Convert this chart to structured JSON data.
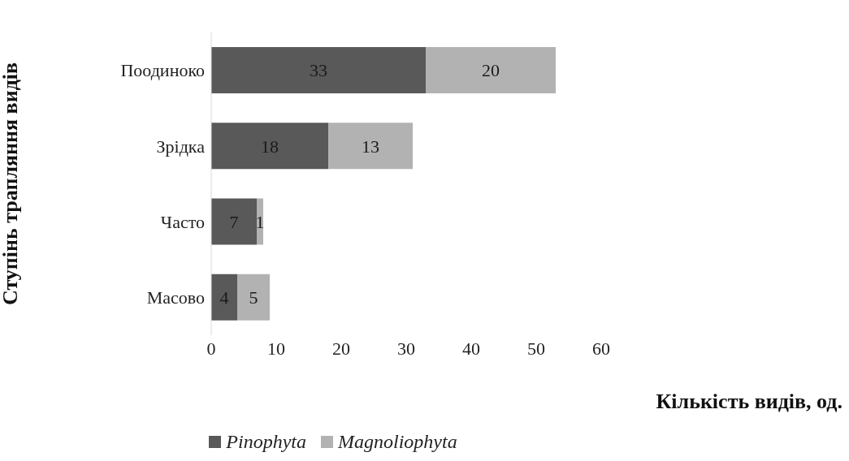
{
  "chart_data": {
    "type": "bar",
    "orientation": "horizontal",
    "stacked": true,
    "xlabel": "Кількість видів, од.",
    "ylabel": "Ступінь трапляння видів",
    "categories": [
      "Поодиноко",
      "Зрідка",
      "Часто",
      "Масово"
    ],
    "series": [
      {
        "name": "Pinophyta",
        "color": "#595959",
        "values": [
          33,
          18,
          7,
          4
        ]
      },
      {
        "name": "Magnoliophyta",
        "color": "#b2b2b2",
        "values": [
          20,
          13,
          1,
          5
        ]
      }
    ],
    "xlim": [
      0,
      60
    ],
    "xticks": [
      0,
      10,
      20,
      30,
      40,
      50,
      60
    ],
    "data_labels": true,
    "legend": "bottom",
    "grid": false
  }
}
